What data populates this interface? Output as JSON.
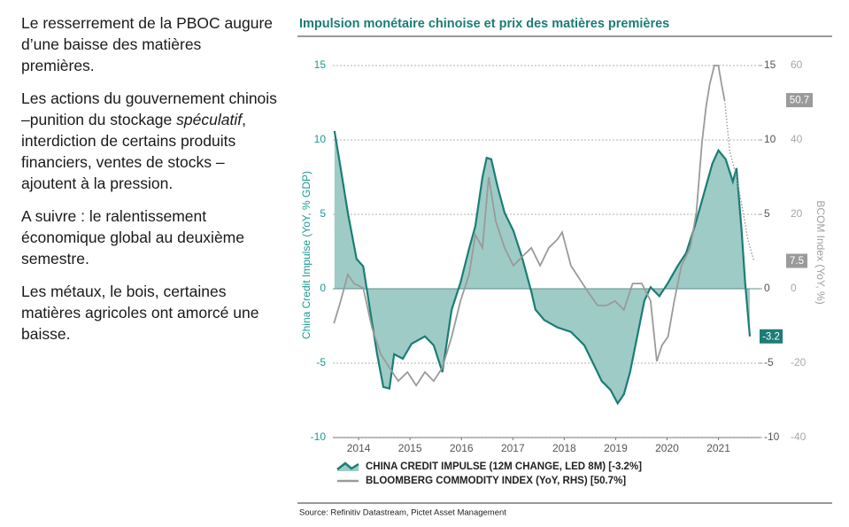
{
  "paragraphs": [
    "Le resserrement de la PBOC augure d’une baisse des matières premières.",
    [
      "Les actions du gouvernement chinois –punition du stockage ",
      "spéculatif",
      ", interdiction de certains produits financiers, ventes de stocks – ajoutent à la pression."
    ],
    "A suivre : le ralentissement économique global au deuxième semestre.",
    "Les métaux, le bois, certaines matières agricoles ont amorcé une baisse."
  ],
  "source": "Source: Refinitiv Datastream, Pictet Asset Management",
  "chart_data": {
    "type": "line",
    "title": "Impulsion monétaire chinoise et prix des matières premières",
    "ylabel": "China Credit Impulse (YoY, % GDP)",
    "y2label": "BCOM Index (YoY, %)",
    "xlim": [
      2013.93,
      2022.3
    ],
    "xticks": [
      {
        "value": 2014.5,
        "label": "2014"
      },
      {
        "value": 2015.5,
        "label": "2015"
      },
      {
        "value": 2016.5,
        "label": "2016"
      },
      {
        "value": 2017.5,
        "label": "2017"
      },
      {
        "value": 2018.5,
        "label": "2018"
      },
      {
        "value": 2019.5,
        "label": "2019"
      },
      {
        "value": 2020.5,
        "label": "2020"
      },
      {
        "value": 2021.5,
        "label": "2021"
      }
    ],
    "ylim": [
      -10,
      15
    ],
    "yticks": [
      -10,
      -5,
      0,
      5,
      10,
      15
    ],
    "y2lim": [
      -40,
      60
    ],
    "y2ticks": [
      -40,
      -20,
      0,
      20,
      40,
      60
    ],
    "grid": true,
    "series": [
      {
        "name": "CHINA CREDIT IMPULSE (12M CHANGE, LED 8M) [-3.2%]",
        "color": "#1b7d75",
        "fill": "#9ecbc6",
        "x": [
          2014.03,
          2014.15,
          2014.29,
          2014.46,
          2014.59,
          2014.72,
          2014.86,
          2014.98,
          2015.1,
          2015.19,
          2015.36,
          2015.53,
          2015.79,
          2015.96,
          2016.13,
          2016.31,
          2016.48,
          2016.65,
          2016.77,
          2016.91,
          2016.99,
          2017.08,
          2017.2,
          2017.34,
          2017.51,
          2017.68,
          2017.86,
          2017.94,
          2018.11,
          2018.37,
          2018.63,
          2018.89,
          2019.06,
          2019.23,
          2019.4,
          2019.54,
          2019.66,
          2019.78,
          2019.92,
          2020.06,
          2020.18,
          2020.35,
          2020.52,
          2020.7,
          2020.87,
          2021.04,
          2021.21,
          2021.38,
          2021.5,
          2021.64,
          2021.78,
          2021.85,
          2021.95,
          2022.02,
          2022.11
        ],
        "values": [
          10.6,
          8.1,
          5.1,
          2.0,
          1.5,
          -1.4,
          -4.4,
          -6.6,
          -6.7,
          -4.4,
          -4.7,
          -3.7,
          -3.2,
          -3.8,
          -5.6,
          -1.4,
          0.4,
          2.7,
          4.2,
          7.5,
          8.8,
          8.7,
          6.9,
          5.1,
          3.9,
          2.1,
          -0.2,
          -1.4,
          -2.1,
          -2.6,
          -2.9,
          -3.8,
          -5.0,
          -6.2,
          -6.8,
          -7.7,
          -7.1,
          -5.6,
          -3.2,
          -0.8,
          0.1,
          -0.5,
          0.4,
          1.5,
          2.4,
          4.2,
          6.3,
          8.4,
          9.3,
          8.7,
          7.2,
          8.1,
          3.9,
          0.4,
          -3.2
        ]
      },
      {
        "name": "BLOOMBERG COMMODITY INDEX (YoY, RHS) [50.7%]",
        "color": "#9a9a9a",
        "axis": "y2",
        "x": [
          2014.02,
          2014.15,
          2014.29,
          2014.41,
          2014.59,
          2014.76,
          2014.93,
          2015.1,
          2015.27,
          2015.45,
          2015.62,
          2015.79,
          2015.96,
          2016.13,
          2016.31,
          2016.48,
          2016.65,
          2016.77,
          2016.91,
          2017.03,
          2017.17,
          2017.34,
          2017.51,
          2017.68,
          2017.86,
          2018.03,
          2018.2,
          2018.37,
          2018.46,
          2018.63,
          2018.8,
          2018.97,
          2019.15,
          2019.32,
          2019.49,
          2019.66,
          2019.83,
          2020.01,
          2020.18,
          2020.3,
          2020.4,
          2020.52,
          2020.64,
          2020.78,
          2020.95,
          2021.07,
          2021.18,
          2021.26,
          2021.33,
          2021.42,
          2021.5,
          2021.56,
          2021.62
        ],
        "values": [
          -9.3,
          -3.3,
          3.8,
          1.4,
          0.2,
          -10.5,
          -17.6,
          -21.2,
          -24.8,
          -22.4,
          -26,
          -22.4,
          -24.8,
          -21.2,
          -12.9,
          -3.3,
          3.8,
          14.5,
          11,
          30,
          18.1,
          11,
          6.2,
          8.6,
          11,
          6.2,
          11,
          13.3,
          15.2,
          6.2,
          2.6,
          -1,
          -4.5,
          -4.5,
          -3.3,
          -5.7,
          1.4,
          1.4,
          -3.3,
          -19.5,
          -15.2,
          -12.9,
          -3.3,
          6.2,
          11,
          20.5,
          39.5,
          49,
          55,
          60,
          60,
          55,
          50.7
        ],
        "projection": {
          "x": [
            2021.62,
            2021.72,
            2021.85,
            2021.95,
            2022.07,
            2022.19
          ],
          "values": [
            50.7,
            37,
            30,
            22.9,
            13.3,
            7.5
          ]
        }
      }
    ]
  }
}
